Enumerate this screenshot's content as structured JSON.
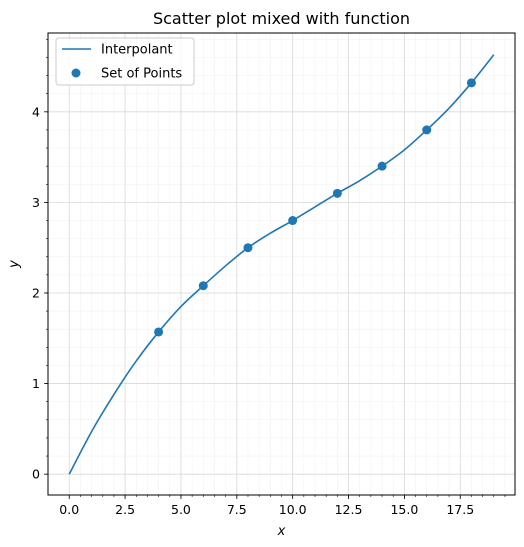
{
  "chart_data": {
    "type": "scatter",
    "title": "Scatter plot mixed with function",
    "xlabel": "x",
    "ylabel": "y",
    "xlim": [
      -0.95,
      19.95
    ],
    "ylim": [
      -0.23,
      4.87
    ],
    "xticks": [
      0.0,
      2.5,
      5.0,
      7.5,
      10.0,
      12.5,
      15.0,
      17.5
    ],
    "xtick_labels": [
      "0.0",
      "2.5",
      "5.0",
      "7.5",
      "10.0",
      "12.5",
      "15.0",
      "17.5"
    ],
    "yticks": [
      0,
      1,
      2,
      3,
      4
    ],
    "ytick_labels": [
      "0",
      "1",
      "2",
      "3",
      "4"
    ],
    "grid": true,
    "minor_grid": true,
    "legend_position": "top-left",
    "color": "#1f77b4",
    "series": [
      {
        "name": "Interpolant",
        "kind": "line",
        "x": [
          0,
          1,
          2,
          3,
          4,
          5,
          6,
          7,
          8,
          9,
          10,
          11,
          12,
          13,
          14,
          15,
          16,
          17,
          18,
          19
        ],
        "y": [
          0.0,
          0.47,
          0.88,
          1.25,
          1.57,
          1.85,
          2.08,
          2.3,
          2.5,
          2.66,
          2.8,
          2.95,
          3.1,
          3.24,
          3.4,
          3.58,
          3.8,
          4.04,
          4.32,
          4.63
        ]
      },
      {
        "name": "Set of Points",
        "kind": "scatter",
        "x": [
          4,
          6,
          8,
          10,
          12,
          14,
          16,
          18
        ],
        "y": [
          1.57,
          2.08,
          2.5,
          2.8,
          3.1,
          3.4,
          3.8,
          4.32
        ]
      }
    ]
  }
}
